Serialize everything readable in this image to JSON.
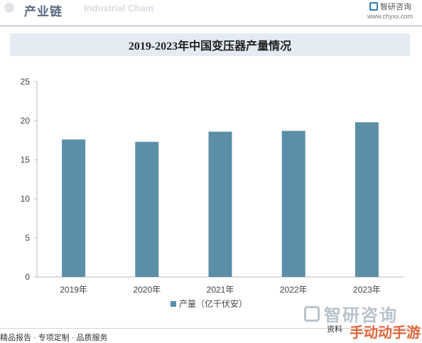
{
  "header": {
    "title": "产业链",
    "watermark": "Industrial Chain",
    "brand_name": "智研咨询",
    "brand_url": "www.chyxx.com"
  },
  "chart_data": {
    "type": "bar",
    "title": "2019-2023年中国变压器产量情况",
    "categories": [
      "2019年",
      "2020年",
      "2021年",
      "2022年",
      "2023年"
    ],
    "series": [
      {
        "name": "产量（亿千伏安）",
        "values": [
          17.6,
          17.3,
          18.6,
          18.7,
          19.8
        ],
        "color": "#5b8fa8"
      }
    ],
    "ylim": [
      0,
      25
    ],
    "yticks": [
      0,
      5,
      10,
      15,
      20,
      25
    ],
    "grid": false,
    "legend": "bottom-center"
  },
  "footer": {
    "left_text": "精品报告 · 专项定制 · 品质服务",
    "right_text": "资料",
    "logo_text": "智研咨询"
  },
  "overlay": {
    "text": "手动动手游"
  }
}
